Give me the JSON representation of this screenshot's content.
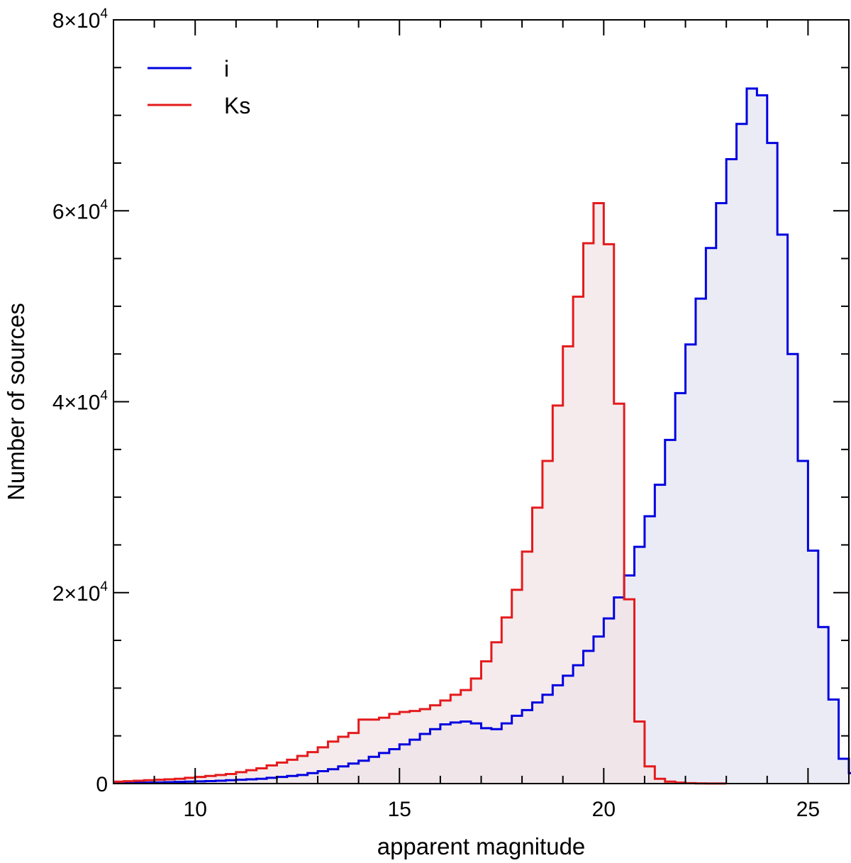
{
  "chart_data": {
    "type": "histogram",
    "title": "",
    "xlabel": "apparent magnitude",
    "ylabel": "Number of sources",
    "xlim": [
      8,
      26
    ],
    "ylim": [
      0,
      80000
    ],
    "grid": false,
    "legend_position": "top-left",
    "bin_width": 0.25,
    "x_ticks": [
      10,
      15,
      20,
      25
    ],
    "y_ticks": [
      {
        "value": 0,
        "mantissa": "0",
        "exponent": ""
      },
      {
        "value": 20000,
        "mantissa": "2×10",
        "exponent": "4"
      },
      {
        "value": 40000,
        "mantissa": "4×10",
        "exponent": "4"
      },
      {
        "value": 60000,
        "mantissa": "6×10",
        "exponent": "4"
      },
      {
        "value": 80000,
        "mantissa": "8×10",
        "exponent": "4"
      }
    ],
    "series": [
      {
        "name": "Ks",
        "color": "#e41a1c",
        "fill": "#f1e4e6",
        "x_start": 8.0,
        "values": [
          200,
          250,
          300,
          350,
          400,
          450,
          500,
          600,
          700,
          800,
          900,
          1000,
          1200,
          1400,
          1600,
          1900,
          2200,
          2500,
          2900,
          3300,
          3800,
          4400,
          4900,
          5300,
          6700,
          6700,
          6900,
          7300,
          7500,
          7600,
          7800,
          8200,
          8700,
          9300,
          9800,
          11000,
          12800,
          14800,
          17400,
          20300,
          24300,
          28900,
          33800,
          39600,
          45800,
          51000,
          56600,
          60800,
          56500,
          39800,
          19300,
          6500,
          1800,
          500,
          200,
          100,
          50,
          20,
          10,
          5
        ],
        "extra_tail": []
      },
      {
        "name": "i",
        "color": "#0000e0",
        "fill": "#e4e4f3",
        "x_start": 8.0,
        "values": [
          50,
          60,
          80,
          100,
          120,
          150,
          180,
          200,
          230,
          260,
          300,
          350,
          400,
          450,
          500,
          600,
          700,
          800,
          900,
          1100,
          1300,
          1500,
          1800,
          2100,
          2400,
          2800,
          3200,
          3600,
          4100,
          4600,
          5200,
          5700,
          6200,
          6400,
          6500,
          6300,
          5800,
          5700,
          6300,
          7100,
          7700,
          8500,
          9300,
          10300,
          11300,
          12400,
          13900,
          15400,
          17300,
          19500,
          21800,
          24800,
          28000,
          31300,
          36000,
          40900,
          46000,
          50800,
          56100,
          60800,
          65400,
          69100,
          72800,
          72100,
          67100,
          57500,
          45000,
          33800,
          24400,
          16400,
          8800,
          2600,
          1100,
          200,
          50,
          10
        ]
      }
    ]
  }
}
